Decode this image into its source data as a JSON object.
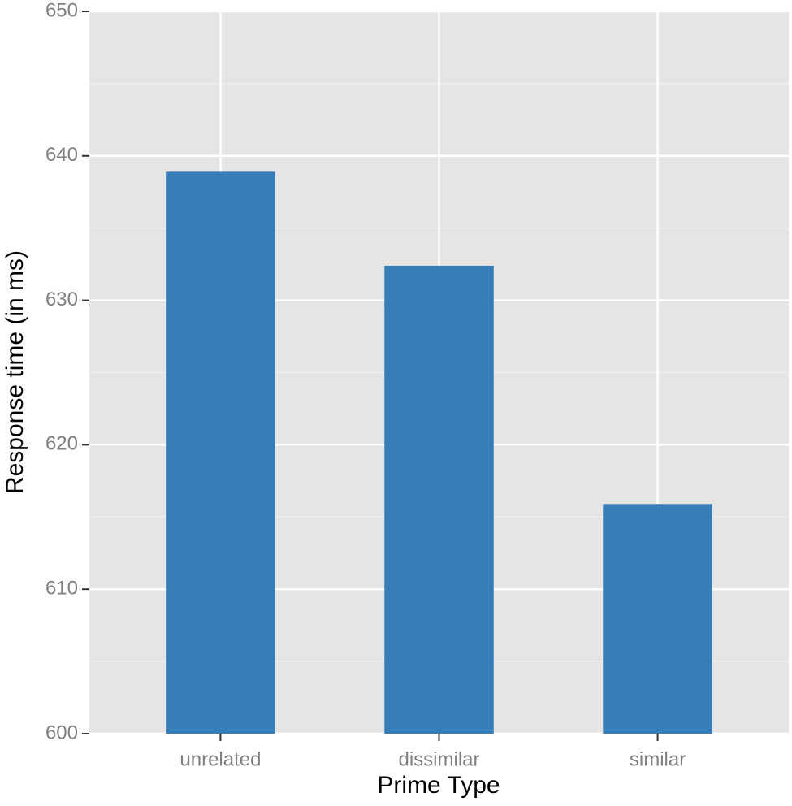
{
  "chart_data": {
    "type": "bar",
    "x_label": "Prime Type",
    "y_label": "Response time (in ms)",
    "categories": [
      "unrelated",
      "dissimilar",
      "similar"
    ],
    "values": [
      638.9,
      632.4,
      615.9
    ],
    "color": "#377eb8",
    "ylim": [
      600,
      650
    ],
    "yticks": [
      600,
      610,
      620,
      630,
      640,
      650
    ],
    "grid": true
  }
}
